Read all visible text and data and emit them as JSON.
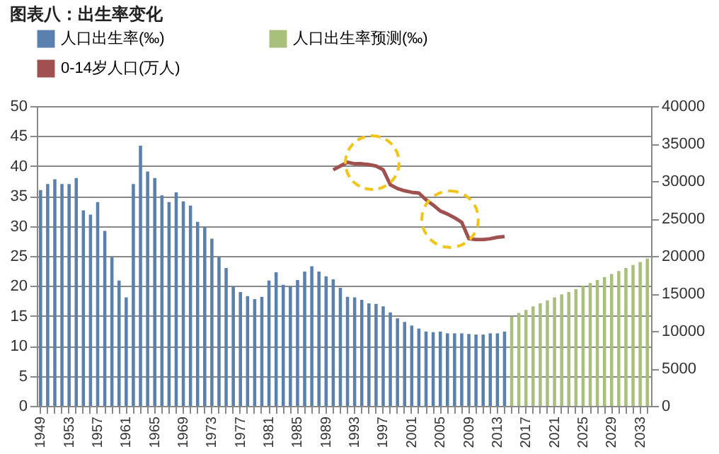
{
  "chart_data": {
    "type": "bar",
    "title": "图表八：出生率变化",
    "categories": [
      "1949",
      null,
      null,
      null,
      "1953",
      null,
      null,
      null,
      "1957",
      null,
      null,
      null,
      "1961",
      null,
      null,
      null,
      "1965",
      null,
      null,
      null,
      "1969",
      null,
      null,
      null,
      "1973",
      null,
      null,
      null,
      "1977",
      null,
      null,
      null,
      "1981",
      null,
      null,
      null,
      "1985",
      null,
      null,
      null,
      "1989",
      null,
      null,
      null,
      "1993",
      null,
      null,
      null,
      "1997",
      null,
      null,
      null,
      "2001",
      null,
      null,
      null,
      "2005",
      null,
      null,
      null,
      "2009",
      null,
      null,
      null,
      "2013",
      null,
      null,
      null,
      "2017",
      null,
      null,
      null,
      "2021",
      null,
      null,
      null,
      "2025",
      null,
      null,
      null,
      "2029",
      null,
      null,
      null,
      "2033",
      null
    ],
    "series": [
      {
        "name": "人口出生率(‰)",
        "color": "#5a80ad",
        "values": [
          36,
          37,
          37.8,
          37,
          37,
          38,
          32.6,
          31.9,
          34,
          29.2,
          24.8,
          20.9,
          18.1,
          37,
          43.4,
          39.1,
          38,
          35.1,
          34,
          35.6,
          34.1,
          33.4,
          30.7,
          29.8,
          27.9,
          24.8,
          23,
          19.9,
          19,
          18.3,
          17.8,
          18.2,
          20.9,
          22.3,
          20.2,
          19.9,
          21,
          22.4,
          23.3,
          22.4,
          21.6,
          21.1,
          19.7,
          18.2,
          18.1,
          17.7,
          17.1,
          17,
          16.6,
          15.6,
          14.6,
          14,
          13.4,
          12.9,
          12.4,
          12.3,
          12.4,
          12.1,
          12.1,
          12.1,
          12,
          11.9,
          11.9,
          12.1,
          12.1,
          12.4,
          null,
          null,
          null,
          null,
          null,
          null,
          null,
          null,
          null,
          null,
          null,
          null,
          null,
          null,
          null,
          null,
          null,
          null,
          null,
          null
        ]
      },
      {
        "name": "人口出生率预测(‰)",
        "color": "#a9c07c",
        "values": [
          null,
          null,
          null,
          null,
          null,
          null,
          null,
          null,
          null,
          null,
          null,
          null,
          null,
          null,
          null,
          null,
          null,
          null,
          null,
          null,
          null,
          null,
          null,
          null,
          null,
          null,
          null,
          null,
          null,
          null,
          null,
          null,
          null,
          null,
          null,
          null,
          null,
          null,
          null,
          null,
          null,
          null,
          null,
          null,
          null,
          null,
          null,
          null,
          null,
          null,
          null,
          null,
          null,
          null,
          null,
          null,
          null,
          null,
          null,
          null,
          null,
          null,
          null,
          null,
          null,
          null,
          14.9,
          15.5,
          16,
          16.6,
          17.1,
          17.6,
          18.1,
          18.6,
          19,
          19.5,
          20,
          20.5,
          21,
          21.5,
          22,
          22.5,
          23,
          23.5,
          24,
          24.6
        ]
      },
      {
        "name": "0-14岁人口(万人)",
        "type": "line",
        "axis": "y2",
        "color": "#a0504f",
        "values": [
          null,
          null,
          null,
          null,
          null,
          null,
          null,
          null,
          null,
          null,
          null,
          null,
          null,
          null,
          null,
          null,
          null,
          null,
          null,
          null,
          null,
          null,
          null,
          null,
          null,
          null,
          null,
          null,
          null,
          null,
          null,
          null,
          null,
          null,
          null,
          null,
          null,
          null,
          null,
          null,
          null,
          31500,
          32000,
          32500,
          32300,
          32300,
          32200,
          32000,
          31500,
          29500,
          29000,
          28700,
          28500,
          28400,
          27500,
          26800,
          26000,
          25600,
          25100,
          24500,
          22300,
          22200,
          22200,
          22300,
          22500,
          22600,
          null,
          null,
          null,
          null,
          null,
          null,
          null,
          null,
          null,
          null,
          null,
          null,
          null,
          null,
          null,
          null,
          null,
          null,
          null,
          null
        ]
      }
    ],
    "ylim": [
      0,
      50
    ],
    "yticks": [
      0,
      5,
      10,
      15,
      20,
      25,
      30,
      35,
      40,
      45,
      50
    ],
    "y2lim": [
      0,
      40000
    ],
    "y2ticks": [
      0,
      5000,
      10000,
      15000,
      20000,
      25000,
      30000,
      35000,
      40000
    ],
    "grid": "y",
    "legend": "top"
  }
}
